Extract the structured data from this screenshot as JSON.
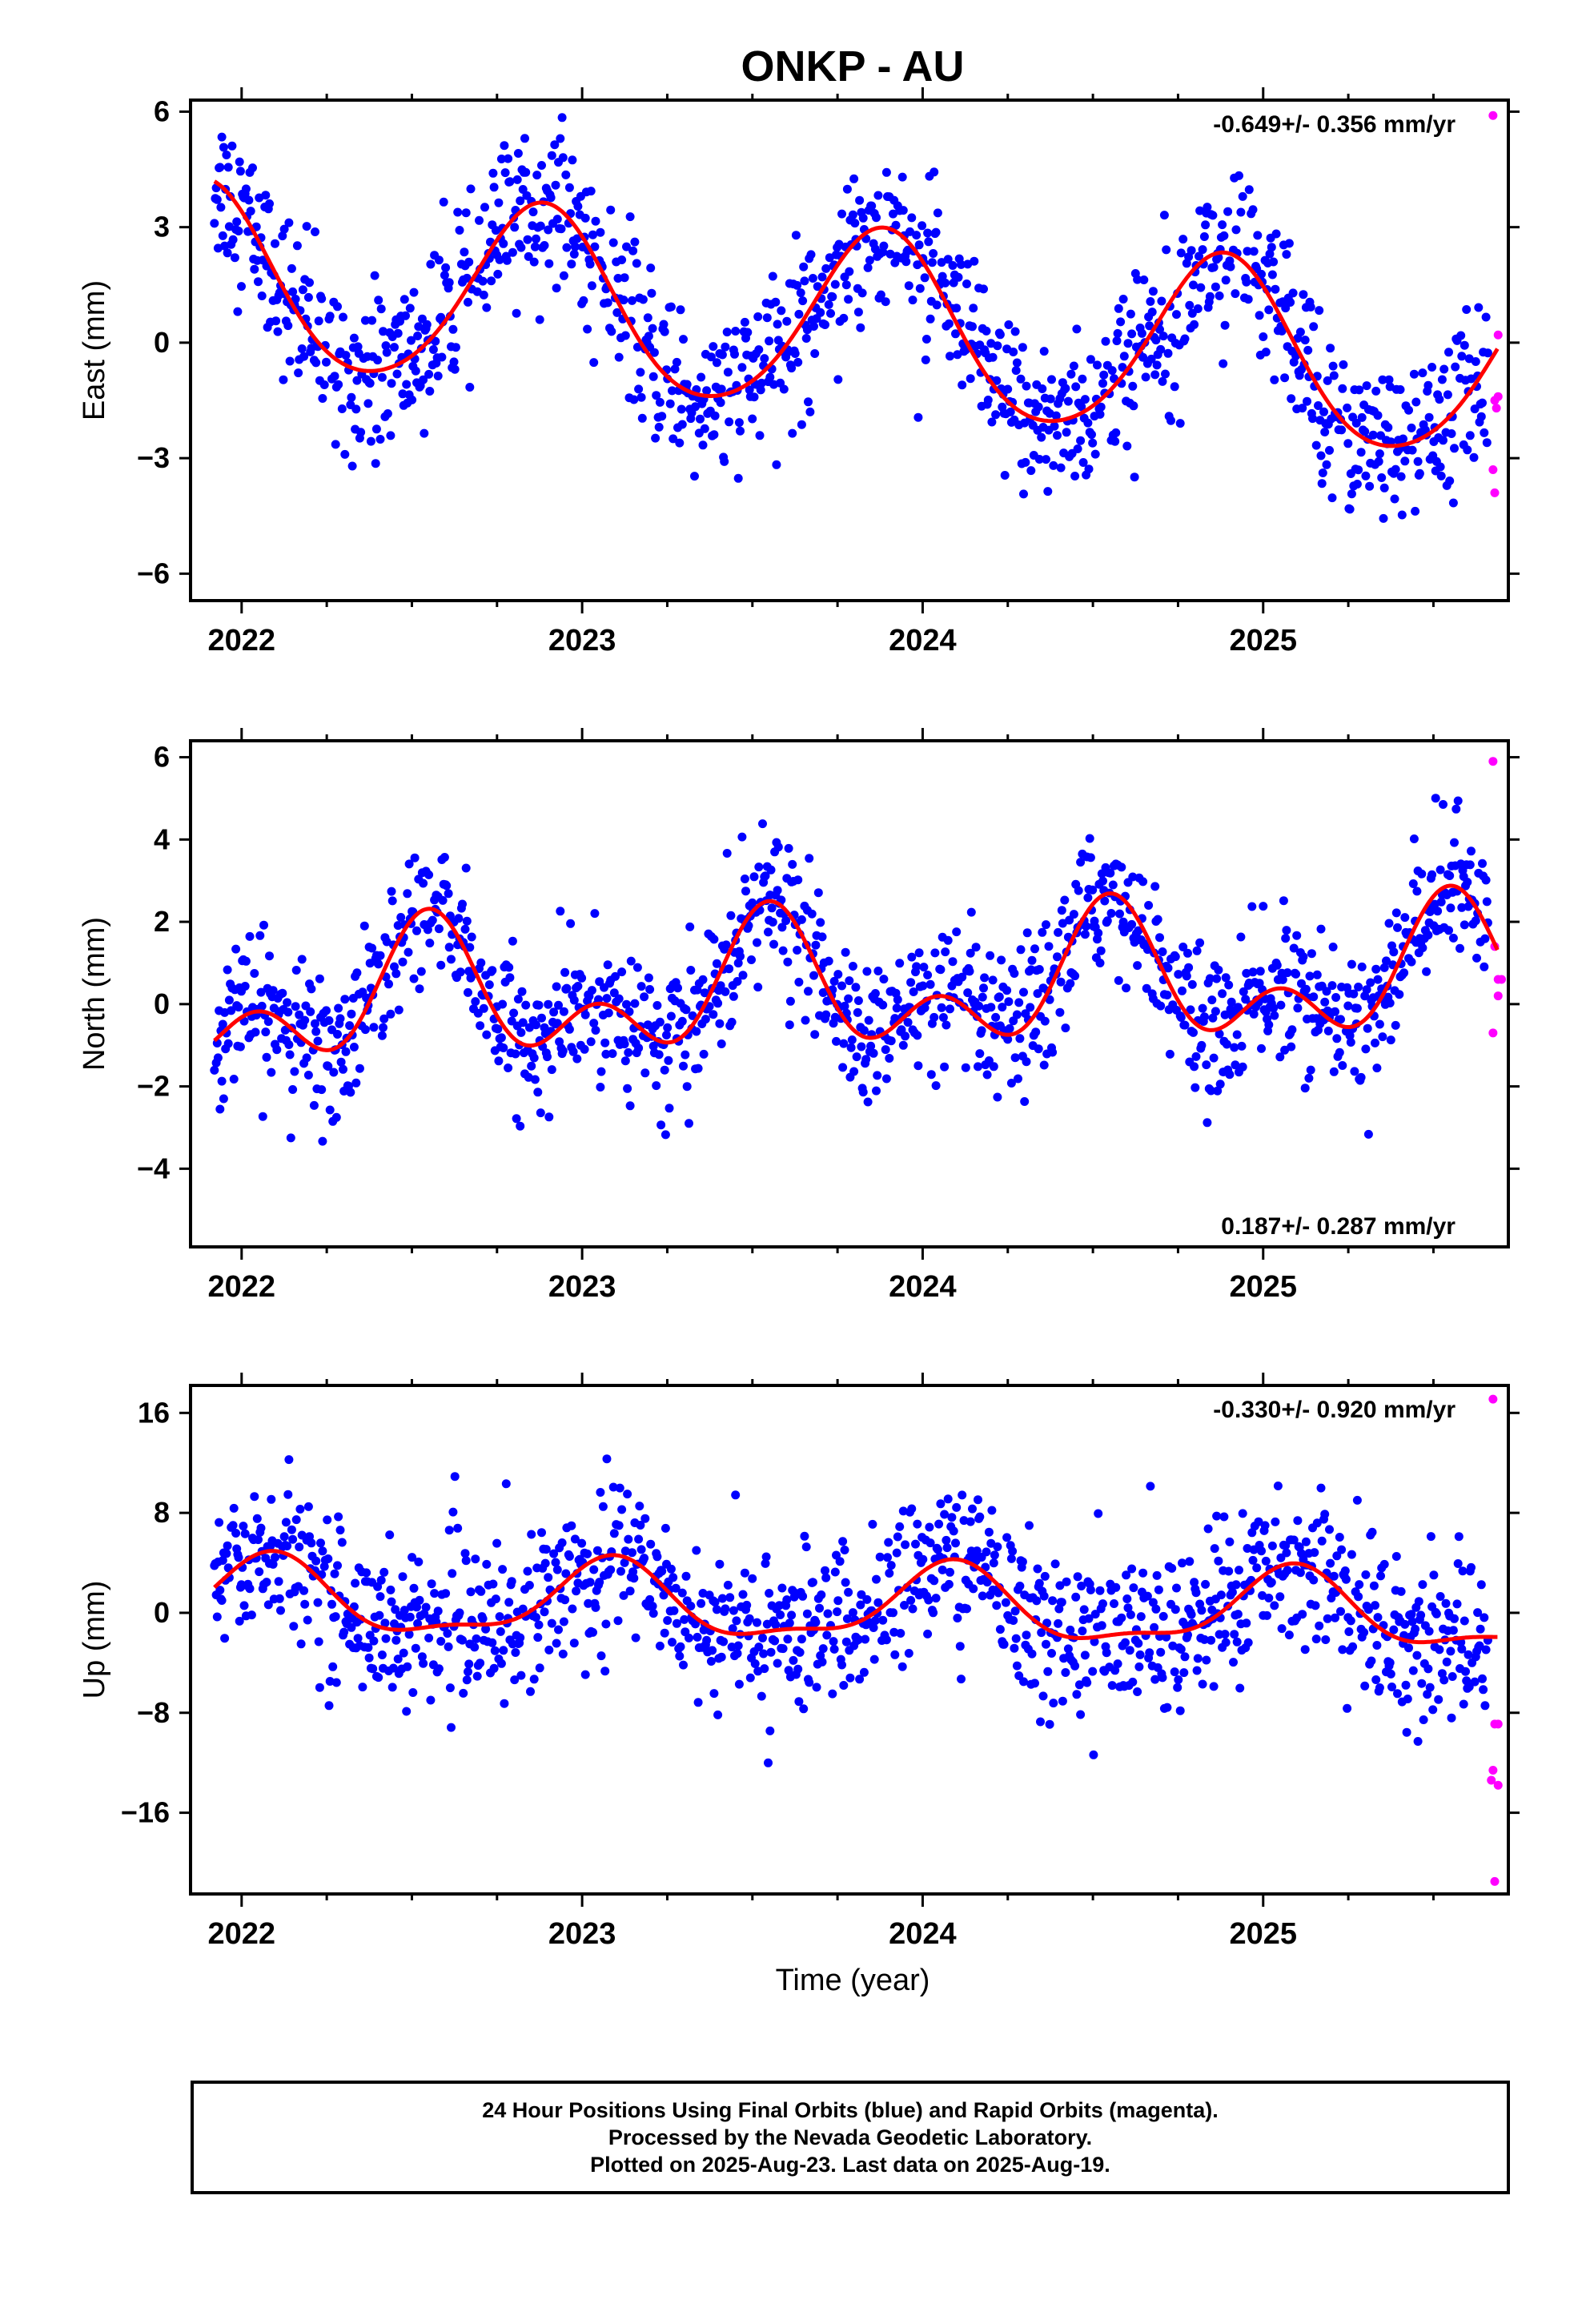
{
  "title": "ONKP - AU",
  "x_axis_title": "Time (year)",
  "footer": {
    "lines": [
      "24 Hour Positions Using Final Orbits (blue) and Rapid Orbits (magenta).",
      "Processed by the Nevada Geodetic Laboratory.",
      "Plotted on 2025-Aug-23. Last data on 2025-Aug-19."
    ]
  },
  "colors": {
    "final_orbits": "#0000ff",
    "rapid_orbits": "#ff00ff",
    "fit": "#ff0000"
  },
  "chart_data": [
    {
      "type": "scatter",
      "panel": "east",
      "ylabel": "East (mm)",
      "ylim": [
        -6.7,
        6.3
      ],
      "xlim": [
        2021.85,
        2025.72
      ],
      "yticks": [
        6,
        3,
        0,
        -3,
        -6
      ],
      "ytick_labels": [
        "6",
        "3",
        "0",
        "−3",
        "−6"
      ],
      "xticks": [
        2022,
        2023,
        2024,
        2025
      ],
      "xtick_labels": [
        "2022",
        "2023",
        "2024",
        "2025"
      ],
      "rate_text": "-0.649+/- 0.356 mm/yr",
      "rate_position": "top-right",
      "fit": {
        "mean": 0.45,
        "trend": -0.649,
        "annual_amp": 2.35,
        "peak": 2022.88,
        "semiannual_amp": 0.25,
        "semiannual_peak": 2022.9
      },
      "scatter_sd": 1.05,
      "rapid_points": [
        [
          2025.675,
          5.9
        ],
        [
          2025.69,
          0.2
        ],
        [
          2025.68,
          -1.5
        ],
        [
          2025.685,
          -1.7
        ],
        [
          2025.69,
          -1.4
        ],
        [
          2025.675,
          -3.3
        ],
        [
          2025.68,
          -3.9
        ]
      ]
    },
    {
      "type": "scatter",
      "panel": "north",
      "ylabel": "North (mm)",
      "ylim": [
        -5.9,
        6.4
      ],
      "xlim": [
        2021.85,
        2025.72
      ],
      "yticks": [
        6,
        4,
        2,
        0,
        -2,
        -4
      ],
      "ytick_labels": [
        "6",
        "4",
        "2",
        "0",
        "−2",
        "−4"
      ],
      "xticks": [
        2022,
        2023,
        2024,
        2025
      ],
      "xtick_labels": [
        "2022",
        "2023",
        "2024",
        "2025"
      ],
      "rate_text": "0.187+/- 0.287 mm/yr",
      "rate_position": "bottom-right",
      "fit": {
        "mean": 0.35,
        "trend": 0.187,
        "annual_amp": 1.2,
        "peak": 2022.55,
        "semiannual_amp": 1.0,
        "semiannual_peak": 2022.55
      },
      "scatter_sd": 0.85,
      "rapid_points": [
        [
          2025.675,
          5.9
        ],
        [
          2025.68,
          1.4
        ],
        [
          2025.69,
          0.6
        ],
        [
          2025.7,
          0.6
        ],
        [
          2025.69,
          0.2
        ],
        [
          2025.675,
          -0.7
        ]
      ]
    },
    {
      "type": "scatter",
      "panel": "up",
      "ylabel": "Up (mm)",
      "ylim": [
        -22.5,
        18.2
      ],
      "xlim": [
        2021.85,
        2025.72
      ],
      "yticks": [
        16,
        8,
        0,
        -8,
        -16
      ],
      "ytick_labels": [
        "16",
        "8",
        "0",
        "−8",
        "−16"
      ],
      "xticks": [
        2022,
        2023,
        2024,
        2025
      ],
      "xtick_labels": [
        "2022",
        "2023",
        "2024",
        "2025"
      ],
      "rate_text": "-0.330+/- 0.920 mm/yr",
      "rate_position": "top-right",
      "fit": {
        "mean": 0.5,
        "trend": -0.33,
        "annual_amp": 2.9,
        "peak": 2023.08,
        "semiannual_amp": 1.0,
        "semiannual_peak": 2023.1
      },
      "scatter_sd": 3.1,
      "rapid_points": [
        [
          2025.675,
          17.1
        ],
        [
          2025.68,
          -8.9
        ],
        [
          2025.69,
          -8.9
        ],
        [
          2025.675,
          -12.6
        ],
        [
          2025.67,
          -13.4
        ],
        [
          2025.69,
          -13.8
        ],
        [
          2025.68,
          -21.5
        ]
      ]
    }
  ]
}
